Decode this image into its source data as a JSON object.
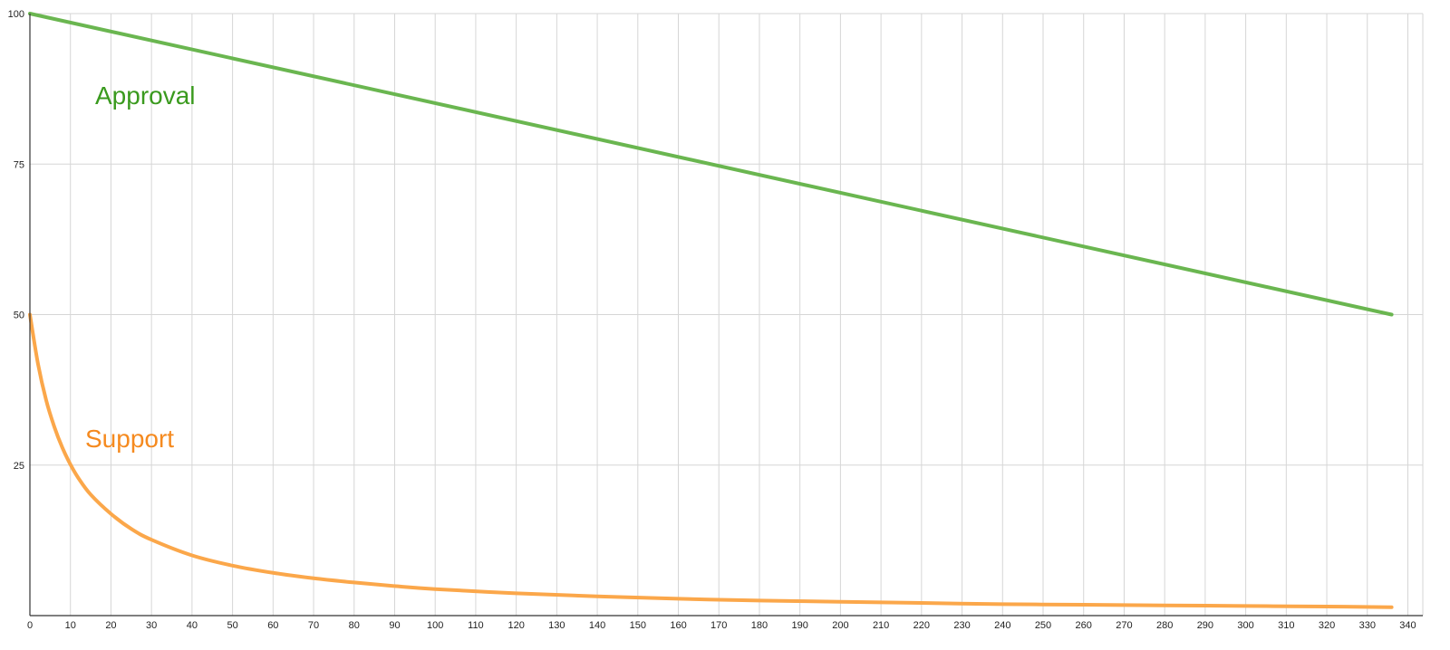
{
  "chart_data": {
    "type": "line",
    "title": "",
    "xlabel": "",
    "ylabel": "",
    "xlim": [
      0,
      345
    ],
    "ylim": [
      0,
      100
    ],
    "x_ticks": [
      0,
      10,
      20,
      30,
      40,
      50,
      60,
      70,
      80,
      90,
      100,
      110,
      120,
      130,
      140,
      150,
      160,
      170,
      180,
      190,
      200,
      210,
      220,
      230,
      240,
      250,
      260,
      270,
      280,
      290,
      300,
      310,
      320,
      330,
      340
    ],
    "x_tick_labels": [
      "0",
      "10",
      "20",
      "30",
      "40",
      "50",
      "60",
      "70",
      "80",
      "90",
      "100",
      "110",
      "120",
      "130",
      "140",
      "150",
      "160",
      "170",
      "180",
      "190",
      "200",
      "210",
      "220",
      "230",
      "240",
      "250",
      "260",
      "270",
      "280",
      "290",
      "300",
      "310",
      "320",
      "330",
      "340"
    ],
    "y_ticks": [
      25,
      50,
      75,
      100
    ],
    "y_tick_labels": [
      "25",
      "50",
      "75",
      "100"
    ],
    "grid": true,
    "legend": "none",
    "series": [
      {
        "name": "Approval",
        "color": "#6ab650",
        "label_color": "#3a9a1e",
        "x": [
          0,
          336
        ],
        "y": [
          100,
          50
        ]
      },
      {
        "name": "Support",
        "color": "#fba74a",
        "label_color": "#f58a1f",
        "x": [
          0,
          2,
          4,
          6,
          8,
          10,
          12,
          15,
          20,
          25,
          30,
          40,
          50,
          60,
          70,
          80,
          90,
          100,
          120,
          140,
          160,
          180,
          200,
          220,
          240,
          260,
          280,
          300,
          320,
          336
        ],
        "y": [
          50,
          41.8,
          35.8,
          31.4,
          27.9,
          25.1,
          22.8,
          20.1,
          16.9,
          14.4,
          12.6,
          10.0,
          8.3,
          7.1,
          6.2,
          5.5,
          4.9,
          4.4,
          3.7,
          3.2,
          2.8,
          2.5,
          2.3,
          2.1,
          1.9,
          1.8,
          1.7,
          1.6,
          1.5,
          1.4
        ]
      }
    ]
  }
}
